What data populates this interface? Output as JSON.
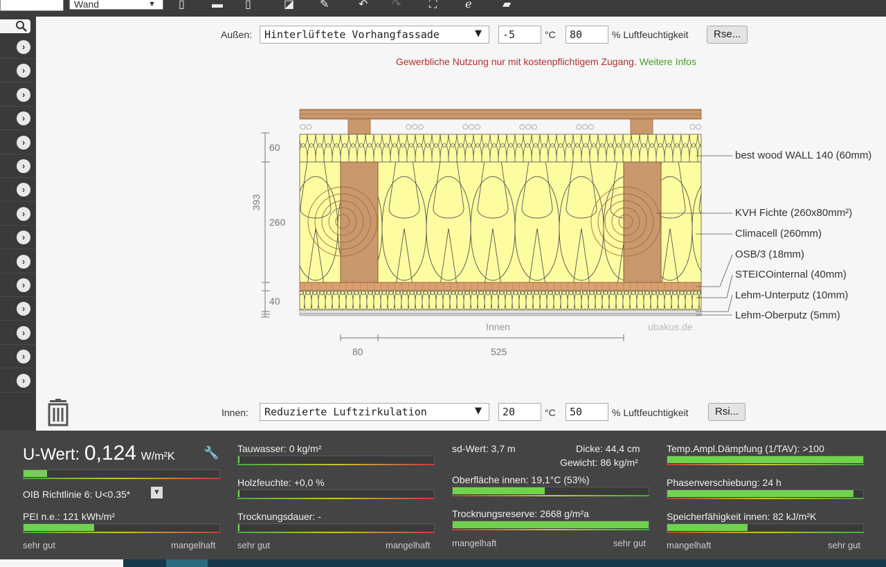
{
  "toolbar": {
    "field_left": "",
    "component_select": "Wand"
  },
  "outer": {
    "label": "Außen:",
    "condition": "Hinterlüftete Vorhangfassade",
    "temperature": "-5",
    "temp_unit": "°C",
    "humidity": "80",
    "humidity_label": "% Luftfeuchtigkeit",
    "rs_button": "Rse..."
  },
  "notice": {
    "text": "Gewerbliche Nutzung nur mit kostenpflichtigem Zugang.",
    "link": "Weitere Infos"
  },
  "drawing": {
    "dim_total": "393",
    "dim_layers": [
      "60",
      "260",
      "40"
    ],
    "dim_bottom": [
      "80",
      "525"
    ],
    "inner_label": "Innen",
    "watermark": "ubakus.de",
    "layers": [
      "best wood WALL 140 (60mm)",
      "KVH Fichte (260x80mm²)",
      "Climacell (260mm)",
      "OSB/3 (18mm)",
      "STEICOinternal (40mm)",
      "Lehm-Unterputz (10mm)",
      "Lehm-Oberputz (5mm)"
    ]
  },
  "inner": {
    "label": "Innen:",
    "condition": "Reduzierte Luftzirkulation",
    "temperature": "20",
    "temp_unit": "°C",
    "humidity": "50",
    "humidity_label": "% Luftfeuchtigkeit",
    "rs_button": "Rsi..."
  },
  "results": {
    "uwert_label": "U-Wert:",
    "uwert_value": "0,124",
    "uwert_unit": "W/m²K",
    "uwert_fill": 0.12,
    "oib": "OIB Richtlinie 6: U<0.35*",
    "pei": "PEI n.e.: 121 kWh/m²",
    "pei_fill": 0.36,
    "tauwasser": "Tauwasser: 0 kg/m²",
    "holzfeuchte": "Holzfeuchte: +0,0 %",
    "trocknungsdauer": "Trocknungsdauer: -",
    "sd_wert": "sd-Wert: 3,7 m",
    "dicke": "Dicke: 44,4 cm",
    "gewicht": "Gewicht: 86 kg/m²",
    "oberflaeche": "Oberfläche innen: 19,1°C (53%)",
    "oberflaeche_fill": 0.47,
    "trocknungsreserve": "Trocknungsreserve: 2668 g/m²a",
    "trocknungsreserve_fill": 1.0,
    "temp_ampl": "Temp.Ampl.Dämpfung (1/TAV): >100",
    "temp_ampl_fill": 1.0,
    "phasen": "Phasenverschiebung: 24 h",
    "phasen_fill": 0.95,
    "speicher": "Speicherfähigkeit innen: 82 kJ/m²K",
    "speicher_fill": 0.41,
    "scale_good": "sehr gut",
    "scale_bad": "mangelhaft"
  },
  "colors": {
    "notice_red": "#b03030",
    "notice_green": "#4a9a2a",
    "panel_bg": "#444444",
    "bar_green": "#6fd34e"
  }
}
